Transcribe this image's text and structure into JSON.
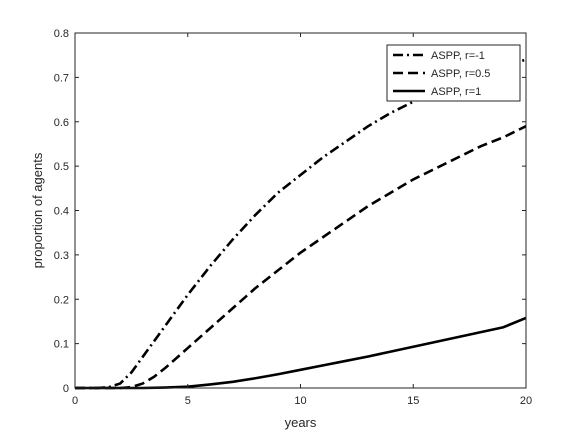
{
  "chart_data": {
    "type": "line",
    "title": "",
    "xlabel": "years",
    "ylabel": "proportion of agents",
    "xlim": [
      0,
      20
    ],
    "ylim": [
      0,
      0.8
    ],
    "xticks": [
      "0",
      "5",
      "10",
      "15",
      "20"
    ],
    "yticks": [
      "0",
      "0.1",
      "0.2",
      "0.3",
      "0.4",
      "0.5",
      "0.6",
      "0.7",
      "0.8"
    ],
    "grid": false,
    "legend_position": "top-right",
    "series": [
      {
        "name": "ASPP, r=-1",
        "line_style": "dashdot",
        "color": "#000000",
        "x": [
          0,
          1,
          1.5,
          2,
          2.5,
          3,
          3.5,
          4,
          5,
          6,
          7,
          8,
          9,
          10,
          11,
          12,
          13,
          14,
          15,
          16,
          17,
          18,
          19,
          20
        ],
        "y": [
          0.0,
          0.0,
          0.002,
          0.01,
          0.035,
          0.07,
          0.105,
          0.14,
          0.21,
          0.275,
          0.335,
          0.39,
          0.44,
          0.48,
          0.52,
          0.555,
          0.59,
          0.62,
          0.645,
          0.67,
          0.69,
          0.71,
          0.725,
          0.74
        ]
      },
      {
        "name": "ASPP, r=0.5",
        "line_style": "dashed",
        "color": "#000000",
        "x": [
          0,
          2,
          2.5,
          3,
          3.5,
          4,
          5,
          6,
          7,
          8,
          9,
          10,
          11,
          12,
          13,
          14,
          15,
          16,
          17,
          18,
          19,
          20
        ],
        "y": [
          0.0,
          0.0,
          0.002,
          0.01,
          0.025,
          0.045,
          0.09,
          0.135,
          0.18,
          0.225,
          0.265,
          0.305,
          0.34,
          0.375,
          0.41,
          0.44,
          0.47,
          0.495,
          0.52,
          0.545,
          0.565,
          0.59
        ]
      },
      {
        "name": "ASPP, r=1",
        "line_style": "solid",
        "color": "#000000",
        "x": [
          0,
          3,
          4,
          5,
          6,
          7,
          8,
          9,
          10,
          11,
          12,
          13,
          14,
          15,
          16,
          17,
          18,
          19,
          20
        ],
        "y": [
          0.0,
          0.0,
          0.001,
          0.003,
          0.008,
          0.014,
          0.022,
          0.031,
          0.041,
          0.051,
          0.061,
          0.071,
          0.082,
          0.093,
          0.104,
          0.115,
          0.126,
          0.137,
          0.158
        ]
      }
    ]
  }
}
